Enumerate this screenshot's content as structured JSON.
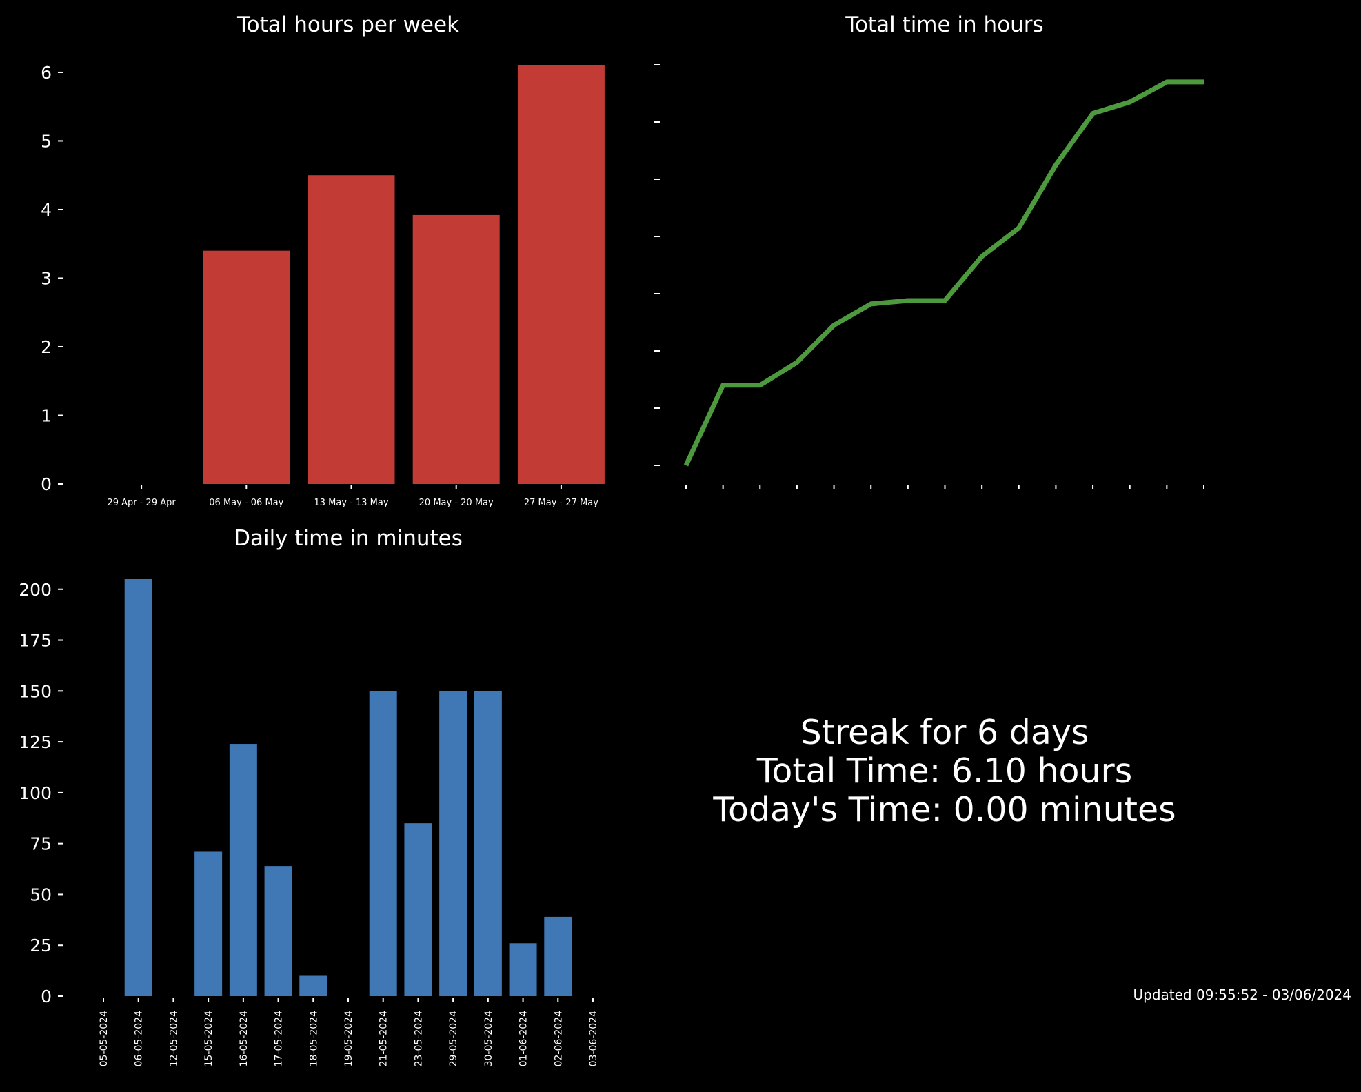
{
  "chart_data": [
    {
      "type": "bar",
      "title": "Total hours per week",
      "categories": [
        "29 Apr - 29 Apr",
        "06 May - 06 May",
        "13 May - 13 May",
        "20 May - 20 May",
        "27 May - 27 May"
      ],
      "values": [
        0,
        3.4,
        4.5,
        3.92,
        6.1
      ],
      "ylim": [
        0,
        6.1
      ],
      "yticks": [
        0,
        1,
        2,
        3,
        4,
        5,
        6
      ],
      "color": "#c23b35",
      "xlabel": "",
      "ylabel": ""
    },
    {
      "type": "line",
      "title": "Total time in hours",
      "x_count": 15,
      "values": [
        0,
        1.4,
        1.4,
        1.8,
        2.45,
        2.82,
        2.88,
        2.88,
        3.65,
        4.15,
        5.25,
        6.15,
        6.35,
        6.7,
        6.7
      ],
      "ylim": [
        0,
        7
      ],
      "ytick_count": 8,
      "tick_labels_hidden": true,
      "color": "#4d9a3e",
      "xlabel": "",
      "ylabel": ""
    },
    {
      "type": "bar",
      "title": "Daily time in minutes",
      "categories": [
        "05-05-2024",
        "06-05-2024",
        "12-05-2024",
        "15-05-2024",
        "16-05-2024",
        "17-05-2024",
        "18-05-2024",
        "19-05-2024",
        "21-05-2024",
        "23-05-2024",
        "29-05-2024",
        "30-05-2024",
        "01-06-2024",
        "02-06-2024",
        "03-06-2024"
      ],
      "values": [
        0,
        205,
        0,
        71,
        124,
        64,
        10,
        0,
        150,
        85,
        150,
        150,
        26,
        39,
        0
      ],
      "ylim": [
        0,
        205
      ],
      "yticks": [
        0,
        25,
        50,
        75,
        100,
        125,
        150,
        175,
        200
      ],
      "color": "#3f78b4",
      "xlabel": "",
      "ylabel": ""
    }
  ],
  "summary": {
    "streak": "Streak for 6 days",
    "total": "Total Time: 6.10 hours",
    "today": "Today's Time: 0.00 minutes"
  },
  "updated": "Updated 09:55:52 - 03/06/2024"
}
